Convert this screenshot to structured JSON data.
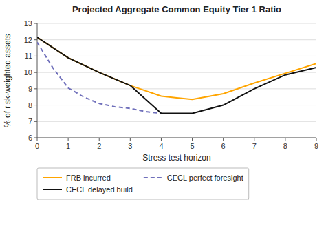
{
  "chart_data": {
    "type": "line",
    "title": "Projected Aggregate Common Equity Tier 1 Ratio",
    "x_label": "Stress test horizon",
    "y_label": "% of risk-weighted assets",
    "xlim": [
      0,
      9
    ],
    "ylim": [
      6,
      13
    ],
    "xticks": [
      0,
      1,
      2,
      3,
      4,
      5,
      6,
      7,
      8,
      9
    ],
    "yticks": [
      6,
      7,
      8,
      9,
      10,
      11,
      12,
      13
    ],
    "grid": "y",
    "legend": "bottom",
    "series": [
      {
        "name": "FRB incurred",
        "color": "#FFA500",
        "line_style": "solid",
        "x": [
          0,
          1,
          2,
          3,
          4,
          4.5,
          5,
          6,
          7,
          8,
          9
        ],
        "values": [
          12.15,
          10.9,
          10.0,
          9.2,
          8.55,
          8.45,
          8.35,
          8.7,
          9.35,
          9.95,
          10.55
        ]
      },
      {
        "name": "CECL perfect foresight",
        "color": "#7070BB",
        "line_style": "dashed",
        "x": [
          0,
          0.5,
          1,
          1.5,
          2,
          2.5,
          3,
          3.5,
          4
        ],
        "values": [
          11.85,
          10.3,
          9.05,
          8.5,
          8.1,
          7.9,
          7.8,
          7.6,
          7.5
        ]
      },
      {
        "name": "CECL delayed build",
        "color": "#111111",
        "line_style": "solid",
        "x": [
          0,
          1,
          2,
          3,
          4,
          5,
          6,
          7,
          8,
          9
        ],
        "values": [
          12.15,
          10.9,
          10.0,
          9.2,
          7.5,
          7.5,
          8.0,
          9.0,
          9.85,
          10.3
        ]
      }
    ]
  }
}
